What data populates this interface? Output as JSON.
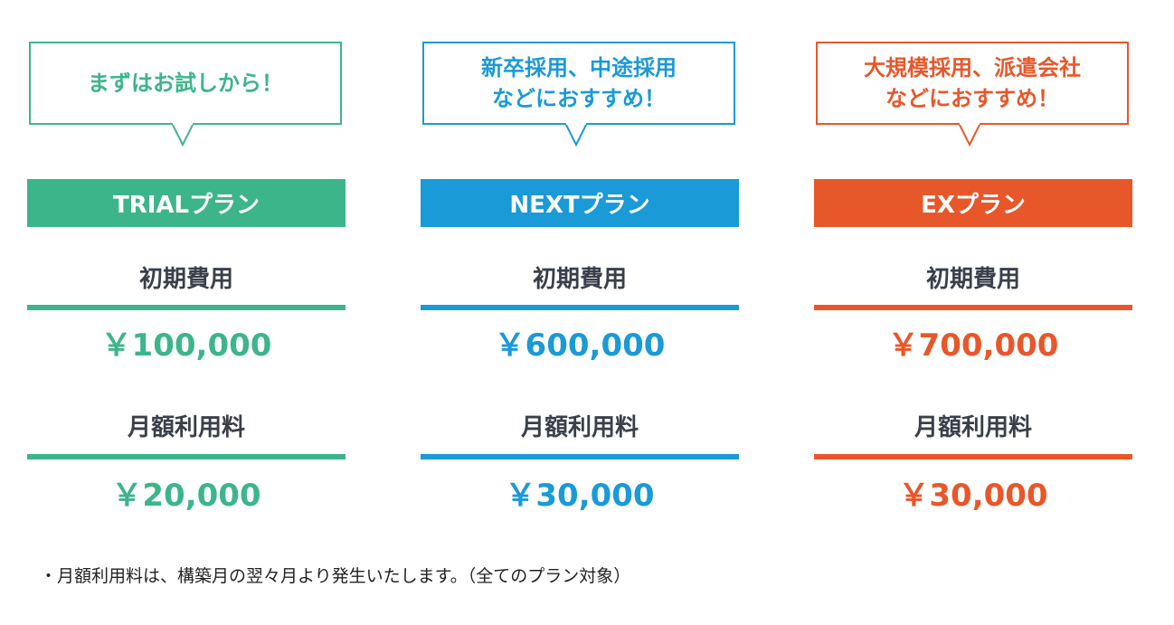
{
  "plans": [
    {
      "bubble": "まずはお試しから！",
      "name": "TRIALプラン",
      "initial_label": "初期費用",
      "initial_price": "￥100,000",
      "monthly_label": "月額利用料",
      "monthly_price": "￥20,000",
      "accent_color": "#3db58a"
    },
    {
      "bubble": "新卒採用、中途採用\nなどにおすすめ！",
      "name": "NEXTプラン",
      "initial_label": "初期費用",
      "initial_price": "￥600,000",
      "monthly_label": "月額利用料",
      "monthly_price": "￥30,000",
      "accent_color": "#1a9ad6"
    },
    {
      "bubble": "大規模採用、派遣会社\nなどにおすすめ！",
      "name": "EXプラン",
      "initial_label": "初期費用",
      "initial_price": "￥700,000",
      "monthly_label": "月額利用料",
      "monthly_price": "￥30,000",
      "accent_color": "#e8572a"
    }
  ],
  "footnote": "・月額利用料は、構築月の翌々月より発生いたします。（全てのプラン対象）"
}
